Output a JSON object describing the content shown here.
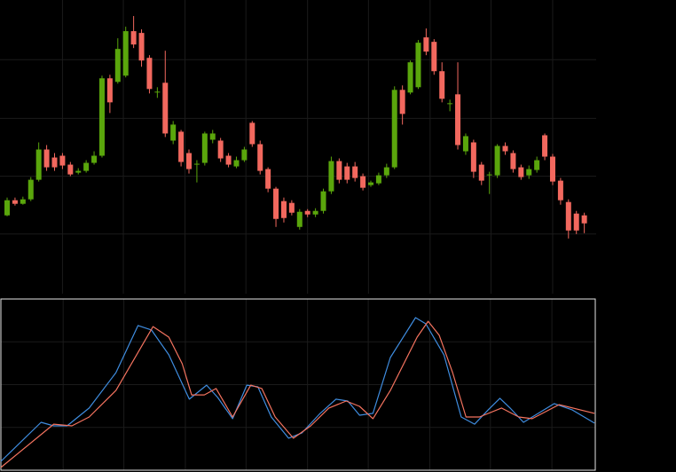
{
  "chart_data": [
    {
      "type": "candlestick",
      "up_color": "#5aa60c",
      "down_color": "#f2685e",
      "grid": true,
      "grid_color": "#1b1b1b",
      "xlim": [
        -0.9,
        74.5
      ],
      "xticks": [
        7.0,
        14.7,
        22.5,
        30.2,
        38.0,
        45.7,
        53.5,
        61.2,
        69.0
      ],
      "ylim": [
        0,
        330
      ],
      "yticks": [
        67,
        132,
        197,
        263
      ],
      "open": [
        88,
        105,
        101,
        106,
        128,
        162,
        153,
        155,
        145,
        136,
        138,
        147,
        155,
        242,
        238,
        245,
        295,
        293,
        265,
        226,
        237,
        172,
        182,
        158,
        145,
        147,
        173,
        172,
        155,
        143,
        150,
        192,
        168,
        140,
        118,
        104,
        102,
        75,
        93,
        89,
        93,
        115,
        149,
        143,
        143,
        132,
        122,
        124,
        133,
        142,
        229,
        226,
        232,
        288,
        283,
        250,
        213,
        224,
        160,
        170,
        145,
        133,
        133,
        166,
        158,
        142,
        133,
        139,
        178,
        154,
        127,
        103,
        90,
        88
      ],
      "high": [
        108,
        108,
        109,
        131,
        170,
        167,
        158,
        158,
        148,
        141,
        150,
        160,
        245,
        246,
        287,
        300,
        312,
        297,
        268,
        232,
        273,
        194,
        184,
        162,
        150,
        182,
        184,
        175,
        158,
        154,
        165,
        194,
        172,
        142,
        120,
        108,
        105,
        95,
        95,
        96,
        118,
        154,
        152,
        147,
        148,
        135,
        127,
        136,
        146,
        233,
        234,
        262,
        285,
        298,
        286,
        260,
        218,
        260,
        180,
        173,
        148,
        137,
        168,
        170,
        161,
        145,
        144,
        154,
        180,
        157,
        130,
        106,
        93,
        91
      ],
      "low": [
        87,
        99,
        100,
        104,
        126,
        138,
        138,
        140,
        132,
        134,
        136,
        145,
        153,
        203,
        236,
        243,
        276,
        255,
        225,
        220,
        176,
        168,
        143,
        135,
        125,
        144,
        169,
        148,
        142,
        141,
        148,
        165,
        134,
        114,
        75,
        80,
        88,
        72,
        86,
        86,
        90,
        112,
        124,
        124,
        126,
        116,
        120,
        122,
        130,
        140,
        190,
        224,
        230,
        268,
        246,
        215,
        205,
        162,
        156,
        130,
        122,
        112,
        130,
        156,
        136,
        128,
        129,
        136,
        150,
        122,
        100,
        62,
        67,
        68
      ],
      "close": [
        105,
        101,
        106,
        128,
        162,
        142,
        142,
        144,
        134,
        138,
        147,
        155,
        242,
        215,
        275,
        295,
        280,
        262,
        230,
        227,
        180,
        190,
        148,
        140,
        146,
        180,
        180,
        152,
        145,
        150,
        162,
        168,
        138,
        118,
        84,
        85,
        91,
        92,
        89,
        93,
        115,
        149,
        128,
        128,
        130,
        119,
        125,
        133,
        142,
        229,
        202,
        260,
        282,
        272,
        250,
        219,
        214,
        167,
        177,
        137,
        127,
        134,
        166,
        160,
        140,
        131,
        140,
        150,
        154,
        126,
        105,
        71,
        71,
        79
      ]
    },
    {
      "type": "line",
      "grid": true,
      "grid_color": "#1b1b1b",
      "border_color": "#e6e6e6",
      "xlim": [
        -0.9,
        74.5
      ],
      "xticks": [
        7.0,
        14.7,
        22.5,
        30.2,
        38.0,
        45.7,
        53.5,
        61.2,
        69.0
      ],
      "ylim": [
        0,
        100
      ],
      "yticks": [
        25,
        50,
        75
      ],
      "series": [
        {
          "color": "#3f8de0",
          "x": [
            -0.9,
            4.2,
            5.8,
            7.5,
            10.3,
            13.7,
            16.5,
            18.2,
            20.4,
            23.0,
            25.2,
            26.6,
            28.5,
            30.3,
            31.7,
            33.4,
            35.6,
            37.3,
            39.6,
            41.6,
            43.1,
            44.6,
            46.3,
            48.5,
            51.7,
            53.0,
            55.3,
            57.5,
            59.2,
            60.9,
            62.4,
            63.7,
            65.4,
            69.3,
            71.6,
            74.4
          ],
          "values": [
            5.2,
            28,
            25.9,
            25.9,
            36.3,
            57,
            84.5,
            81.9,
            67.4,
            41.5,
            49.7,
            42.5,
            30.1,
            49.7,
            48.7,
            31.1,
            18.7,
            21.8,
            33.2,
            41.5,
            40.4,
            32.1,
            33.2,
            65.8,
            89.1,
            85.5,
            67.4,
            31.1,
            26.9,
            35.2,
            42,
            36.3,
            28,
            38.9,
            35.2,
            27.5
          ]
        },
        {
          "color": "#f4735f",
          "x": [
            -0.9,
            5.8,
            8.1,
            10.3,
            13.7,
            18.4,
            20.4,
            22.1,
            23.3,
            24.9,
            26.4,
            28.5,
            30.8,
            32.2,
            33.9,
            36.2,
            38.4,
            40.7,
            42.9,
            44.6,
            46.3,
            48.5,
            51.9,
            53.3,
            54.7,
            56.4,
            58.1,
            59.8,
            62.6,
            64.8,
            66.5,
            69.9,
            74.4
          ],
          "values": [
            1.6,
            26.9,
            25.9,
            31.1,
            46.6,
            83.9,
            77.7,
            62.2,
            44,
            44,
            47.7,
            31.1,
            49.7,
            47.7,
            31.1,
            18.7,
            25.9,
            36.3,
            40.4,
            37.3,
            30.1,
            46.6,
            77.7,
            87,
            78.8,
            57,
            31.1,
            31.1,
            36.3,
            31.1,
            30.1,
            38.3,
            33.2
          ]
        }
      ]
    }
  ]
}
